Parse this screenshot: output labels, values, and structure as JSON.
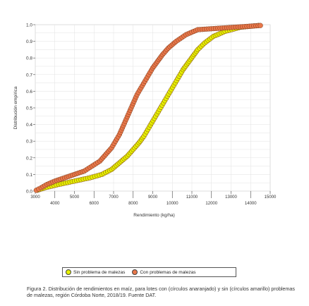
{
  "chart_data": {
    "type": "scatter",
    "ylabel": "Distribución empírica",
    "xlabel": "Rendimiento (kg/ha)",
    "xlim": [
      3000,
      15000
    ],
    "ylim": [
      0,
      1
    ],
    "x_ticks_upper": [
      "3000",
      "5000",
      "7000",
      "9000",
      "11000",
      "13000",
      "15000"
    ],
    "x_ticks_lower": [
      "4000",
      "6000",
      "8000",
      "10000",
      "12000",
      "14000"
    ],
    "y_ticks": [
      "0.0",
      "0.1",
      "0.2",
      "0.3",
      "0.4",
      "0.5",
      "0.6",
      "0.7",
      "0.8",
      "0.9",
      "1.0"
    ],
    "grid": true,
    "legend_position": "bottom",
    "series": [
      {
        "name": "Con problemas de malezas",
        "color": "#e8774a",
        "points": [
          [
            3050,
            0.005
          ],
          [
            3300,
            0.02
          ],
          [
            3600,
            0.04
          ],
          [
            4000,
            0.06
          ],
          [
            4500,
            0.08
          ],
          [
            5000,
            0.1
          ],
          [
            5500,
            0.12
          ],
          [
            5900,
            0.15
          ],
          [
            6300,
            0.18
          ],
          [
            6600,
            0.22
          ],
          [
            6900,
            0.26
          ],
          [
            7100,
            0.3
          ],
          [
            7300,
            0.34
          ],
          [
            7450,
            0.38
          ],
          [
            7600,
            0.42
          ],
          [
            7750,
            0.46
          ],
          [
            7900,
            0.5
          ],
          [
            8050,
            0.54
          ],
          [
            8200,
            0.58
          ],
          [
            8400,
            0.62
          ],
          [
            8600,
            0.66
          ],
          [
            8800,
            0.7
          ],
          [
            9000,
            0.74
          ],
          [
            9250,
            0.78
          ],
          [
            9500,
            0.82
          ],
          [
            9800,
            0.86
          ],
          [
            10200,
            0.9
          ],
          [
            10700,
            0.94
          ],
          [
            11300,
            0.97
          ],
          [
            14500,
            0.995
          ]
        ]
      },
      {
        "name": "Sin problema de malezas",
        "color": "#e5f000",
        "points": [
          [
            3100,
            0.005
          ],
          [
            3500,
            0.02
          ],
          [
            4200,
            0.04
          ],
          [
            5000,
            0.06
          ],
          [
            5800,
            0.08
          ],
          [
            6400,
            0.1
          ],
          [
            6900,
            0.13
          ],
          [
            7300,
            0.17
          ],
          [
            7700,
            0.21
          ],
          [
            8000,
            0.25
          ],
          [
            8300,
            0.29
          ],
          [
            8550,
            0.33
          ],
          [
            8750,
            0.37
          ],
          [
            8950,
            0.41
          ],
          [
            9150,
            0.45
          ],
          [
            9350,
            0.49
          ],
          [
            9550,
            0.53
          ],
          [
            9750,
            0.57
          ],
          [
            9950,
            0.61
          ],
          [
            10150,
            0.65
          ],
          [
            10350,
            0.69
          ],
          [
            10550,
            0.73
          ],
          [
            10800,
            0.77
          ],
          [
            11050,
            0.81
          ],
          [
            11300,
            0.85
          ],
          [
            11650,
            0.89
          ],
          [
            12100,
            0.93
          ],
          [
            12700,
            0.96
          ],
          [
            13500,
            0.985
          ],
          [
            14400,
            0.995
          ]
        ]
      }
    ]
  },
  "legend": {
    "items": [
      {
        "label": "Sin problema de malezas",
        "color": "#e5f000"
      },
      {
        "label": "Con problemas de malezas",
        "color": "#e8774a"
      }
    ]
  },
  "caption": "Figura 2. Distribución de rendimientos en maíz, para lotes con (círculos anaranjado) y sin (círculos amarillo) problemas de malezas, región Córdoba Norte, 2018/19. Fuente DAT."
}
